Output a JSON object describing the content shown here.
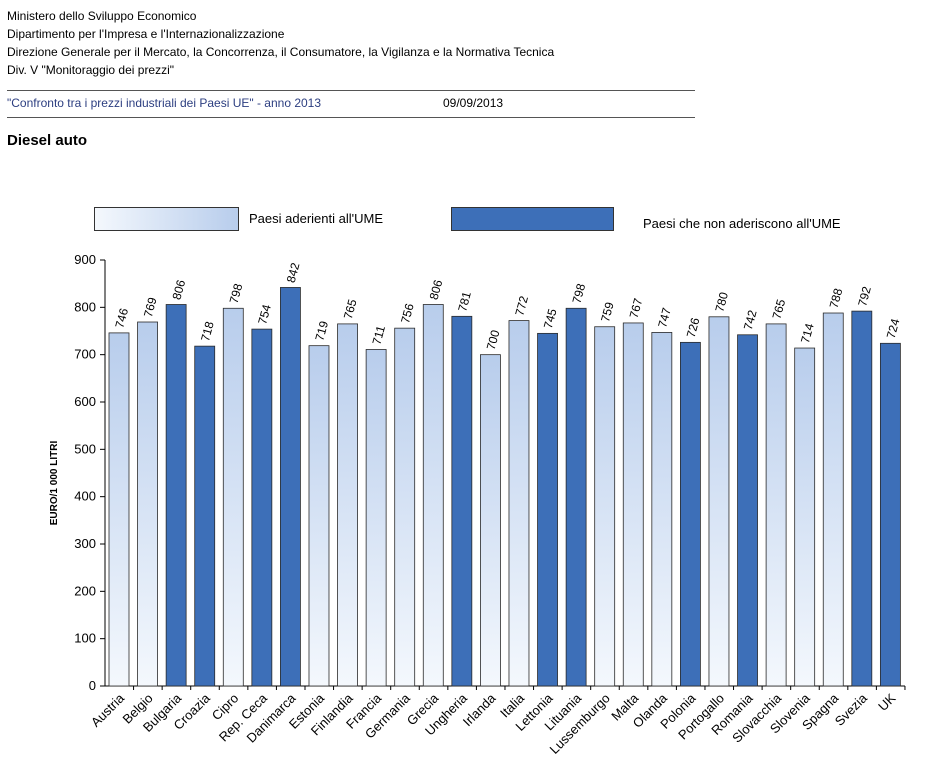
{
  "header": {
    "line1": "Ministero dello Sviluppo Economico",
    "line2": "Dipartimento per l'Impresa e l'Internazionalizzazione",
    "line3": "Direzione Generale per il Mercato, la Concorrenza, il Consumatore, la Vigilanza e la Normativa Tecnica",
    "line4": "Div. V  \"Monitoraggio dei prezzi\"",
    "subtitle": "\"Confronto tra i prezzi industriali dei Paesi UE\" - anno 2013",
    "date": "09/09/2013",
    "section": "Diesel auto"
  },
  "colors": {
    "ume": "#b8cdec",
    "non_ume": "#3d6fb8",
    "axis": "#000000"
  },
  "chart_data": {
    "type": "bar",
    "title": "Diesel auto",
    "xlabel": "",
    "ylabel": "EURO/1 000 LITRI",
    "ylim": [
      0,
      900
    ],
    "yticks": [
      0,
      100,
      200,
      300,
      400,
      500,
      600,
      700,
      800,
      900
    ],
    "legend": {
      "ume": "Paesi aderienti  all'UME",
      "non_ume": "Paesi che non aderiscono all'UME",
      "placement": "top"
    },
    "categories": [
      "Austria",
      "Belgio",
      "Bulgaria",
      "Croazia",
      "Cipro",
      "Rep. Ceca",
      "Danimarca",
      "Estonia",
      "Finlandia",
      "Francia",
      "Germania",
      "Grecia",
      "Ungheria",
      "Irlanda",
      "Italia",
      "Lettonia",
      "Lituania",
      "Lussemburgo",
      "Malta",
      "Olanda",
      "Polonia",
      "Portogallo",
      "Romania",
      "Slovacchia",
      "Slovenia",
      "Spagna",
      "Svezia",
      "UK"
    ],
    "values": [
      746,
      769,
      806,
      718,
      798,
      754,
      842,
      719,
      765,
      711,
      756,
      806,
      781,
      700,
      772,
      745,
      798,
      759,
      767,
      747,
      726,
      780,
      742,
      765,
      714,
      788,
      792,
      724
    ],
    "group": [
      "ume",
      "ume",
      "non_ume",
      "non_ume",
      "ume",
      "non_ume",
      "non_ume",
      "ume",
      "ume",
      "ume",
      "ume",
      "ume",
      "non_ume",
      "ume",
      "ume",
      "non_ume",
      "non_ume",
      "ume",
      "ume",
      "ume",
      "non_ume",
      "ume",
      "non_ume",
      "ume",
      "ume",
      "ume",
      "non_ume",
      "non_ume"
    ]
  }
}
